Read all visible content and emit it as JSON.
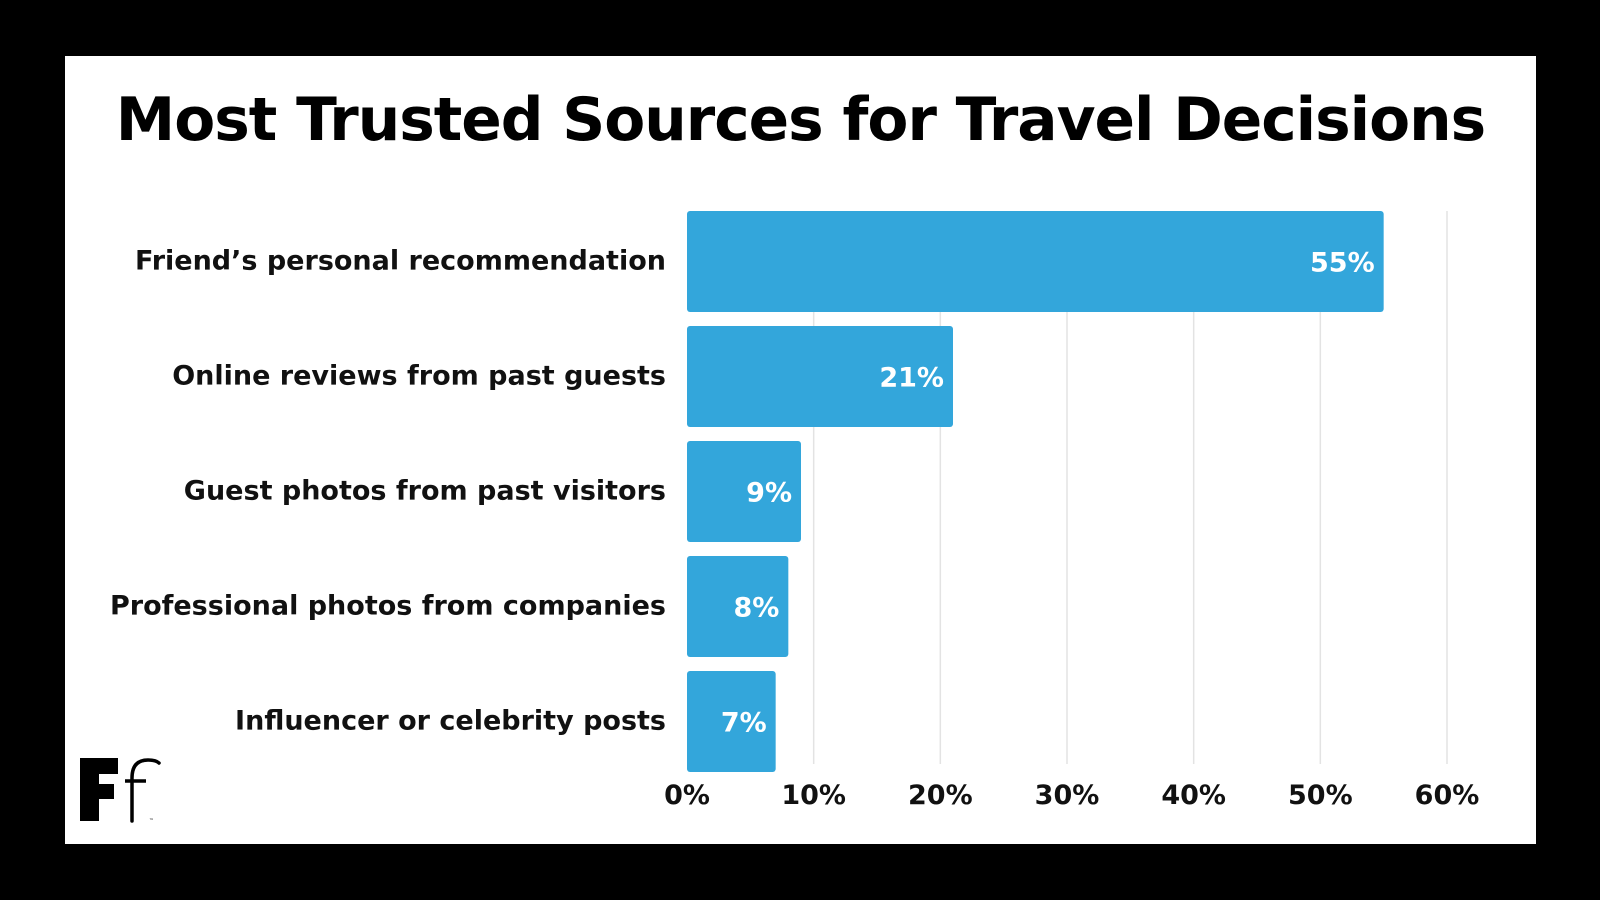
{
  "chart_data": {
    "type": "bar",
    "orientation": "horizontal",
    "title": "Most Trusted Sources for Travel Decisions",
    "categories": [
      "Friend’s personal recommendation",
      "Online reviews from past guests",
      "Guest photos from past visitors",
      "Professional photos from companies",
      "Influencer or celebrity posts"
    ],
    "values": [
      55,
      21,
      9,
      8,
      7
    ],
    "data_labels": [
      "55%",
      "21%",
      "9%",
      "8%",
      "7%"
    ],
    "xlim": [
      0,
      60
    ],
    "x_ticks": [
      0,
      10,
      20,
      30,
      40,
      50,
      60
    ],
    "x_tick_labels": [
      "0%",
      "10%",
      "20%",
      "30%",
      "40%",
      "50%",
      "60%"
    ],
    "xlabel": "",
    "ylabel": "",
    "grid": "vertical",
    "legend": "none",
    "bar_color": "#33a6db"
  },
  "logo": {
    "text_main": "F",
    "text_secondary": "f",
    "mark": "™"
  },
  "colors": {
    "background": "#000000",
    "card": "#ffffff",
    "bar": "#33a6db",
    "text": "#111111",
    "grid": "#e3e3e3"
  }
}
